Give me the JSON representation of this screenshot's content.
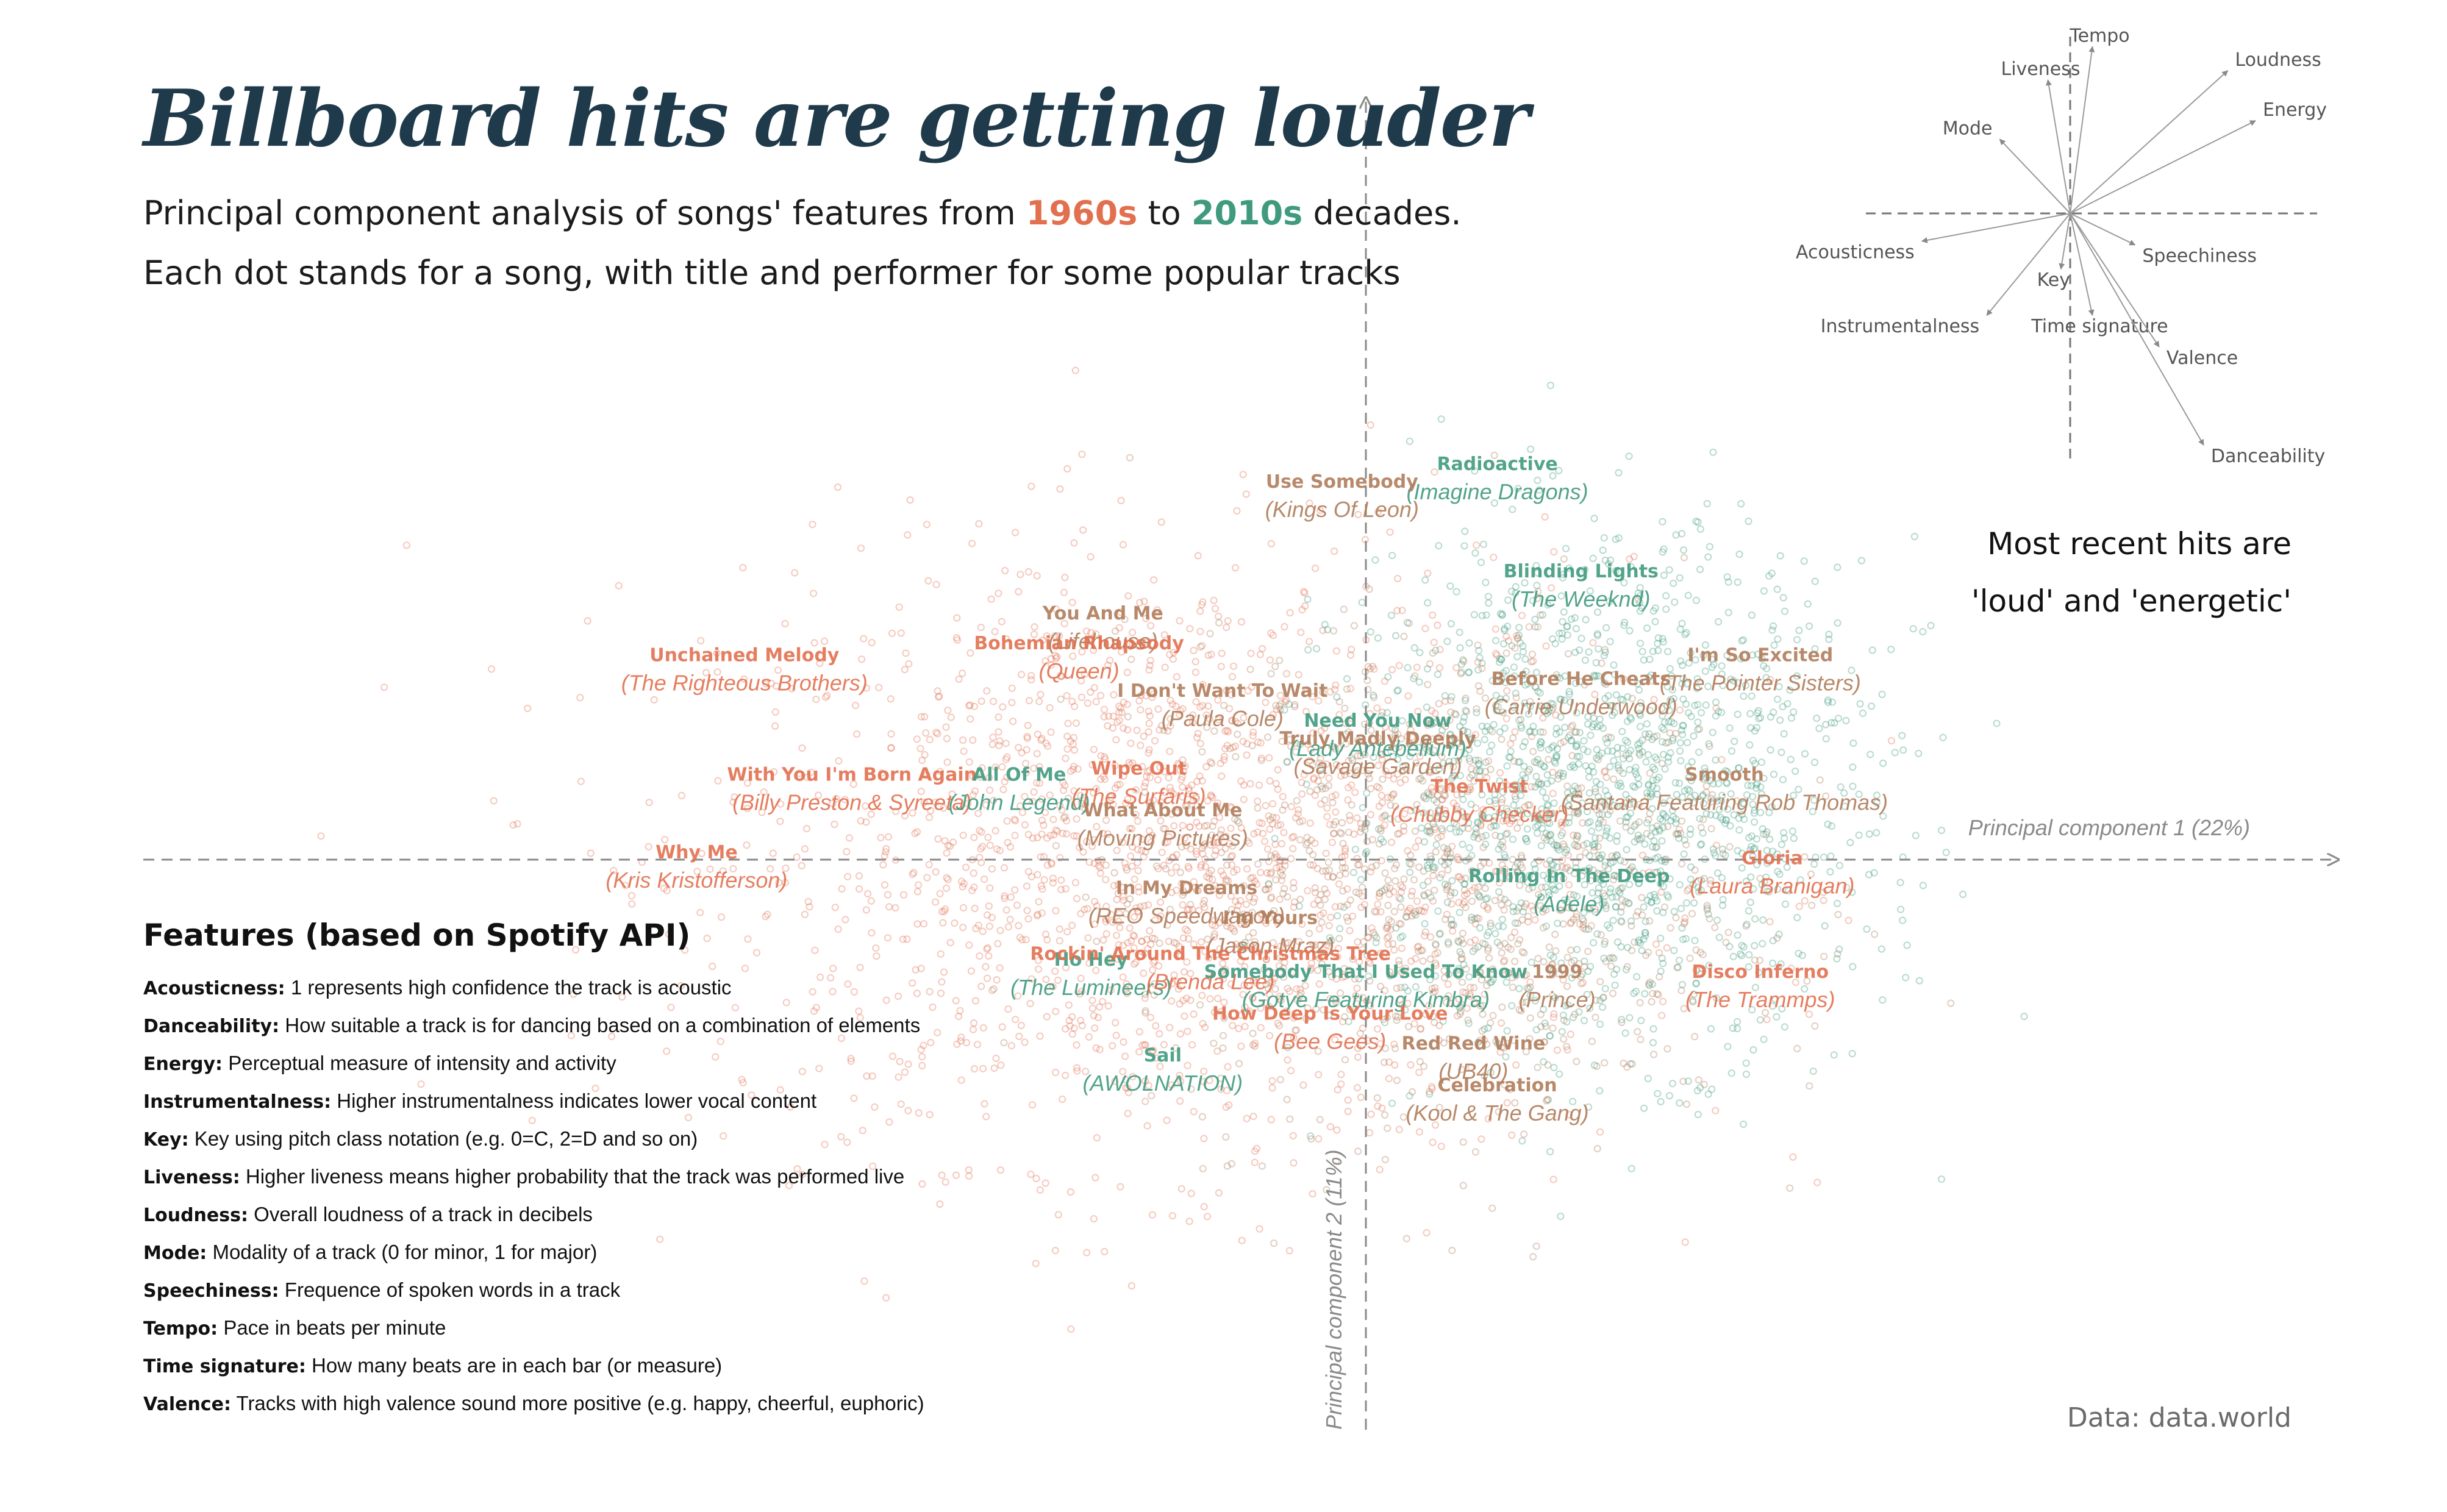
{
  "header": {
    "title": "Billboard hits are getting louder",
    "subtitle_1_pre": "Principal component analysis of songs' features from ",
    "subtitle_1_from": "1960s",
    "subtitle_1_mid": " to ",
    "subtitle_1_to": "2010s",
    "subtitle_1_post": " decades.",
    "subtitle_2": "Each dot stands for a song, with title and performer for some popular tracks"
  },
  "colors": {
    "old": "#e2704f",
    "new": "#3f9a7e",
    "mid": "#b07c5a",
    "axis": "#8a8a8a",
    "title": "#1f3a4a"
  },
  "annotation": {
    "line_1": "Most recent hits are",
    "line_2": "'loud' and 'energetic'"
  },
  "source": "Data: data.world",
  "features": {
    "title": "Features (based on Spotify API)",
    "items": [
      {
        "name": "Acousticness:",
        "desc": " 1 represents high confidence the track is acoustic"
      },
      {
        "name": "Danceability:",
        "desc": " How suitable a track is for dancing based on a combination of elements"
      },
      {
        "name": "Energy:",
        "desc": " Perceptual measure of intensity and activity"
      },
      {
        "name": "Instrumentalness:",
        "desc": " Higher instrumentalness indicates lower vocal content"
      },
      {
        "name": "Key:",
        "desc": " Key using pitch class notation (e.g. 0=C, 2=D and so on)"
      },
      {
        "name": "Liveness:",
        "desc": " Higher liveness means higher probability that the track was performed live"
      },
      {
        "name": "Loudness:",
        "desc": " Overall loudness of a track in decibels"
      },
      {
        "name": "Mode:",
        "desc": " Modality of a track (0 for minor, 1 for major)"
      },
      {
        "name": "Speechiness:",
        "desc": " Frequence of spoken words in a track"
      },
      {
        "name": "Tempo:",
        "desc": " Pace in beats per minute"
      },
      {
        "name": "Time signature:",
        "desc": " How many beats are in each bar (or measure)"
      },
      {
        "name": "Valence:",
        "desc": " Tracks with high valence sound more positive (e.g. happy, cheerful, euphoric)"
      }
    ]
  },
  "chart_data": {
    "type": "scatter",
    "xlabel": "Principal component 1 (22%)",
    "ylabel": "Principal component 2 (11%)",
    "xlim": [
      -6,
      5
    ],
    "ylim": [
      -3.3,
      4
    ],
    "grid": false,
    "series": [
      {
        "name": "1960s",
        "color": "#e2704f"
      },
      {
        "name": "2010s",
        "color": "#3f9a7e"
      }
    ],
    "songs": [
      {
        "title": "Radioactive",
        "artist": "(Imagine Dragons)",
        "x": 1.1,
        "y": 3.2,
        "tone": "new"
      },
      {
        "title": "Use Somebody",
        "artist": "(Kings Of Leon)",
        "x": -0.2,
        "y": 3.05,
        "tone": "mid"
      },
      {
        "title": "Blinding Lights",
        "artist": "(The Weeknd)",
        "x": 1.8,
        "y": 2.3,
        "tone": "new"
      },
      {
        "title": "You And Me",
        "artist": "(Lifehouse)",
        "x": -2.2,
        "y": 1.95,
        "tone": "mid"
      },
      {
        "title": "Bohemian Rhapsody",
        "artist": "(Queen)",
        "x": -2.4,
        "y": 1.7,
        "tone": "old"
      },
      {
        "title": "Unchained Melody",
        "artist": "(The Righteous Brothers)",
        "x": -5.2,
        "y": 1.6,
        "tone": "old"
      },
      {
        "title": "I'm So Excited",
        "artist": "(The Pointer Sisters)",
        "x": 3.3,
        "y": 1.6,
        "tone": "mid"
      },
      {
        "title": "Before He Cheats",
        "artist": "(Carrie Underwood)",
        "x": 1.8,
        "y": 1.4,
        "tone": "mid"
      },
      {
        "title": "I Don't Want To Wait",
        "artist": "(Paula Cole)",
        "x": -1.2,
        "y": 1.3,
        "tone": "mid"
      },
      {
        "title": "Need You Now",
        "artist": "(Lady Antebellum)",
        "x": 0.1,
        "y": 1.05,
        "tone": "new"
      },
      {
        "title": "Truly Madly Deeply",
        "artist": "(Savage Garden)",
        "x": 0.1,
        "y": 0.9,
        "tone": "mid"
      },
      {
        "title": "With You I'm Born Again",
        "artist": "(Billy Preston & Syreeta)",
        "x": -4.3,
        "y": 0.6,
        "tone": "old"
      },
      {
        "title": "All Of Me",
        "artist": "(John Legend)",
        "x": -2.9,
        "y": 0.6,
        "tone": "new"
      },
      {
        "title": "Wipe Out",
        "artist": "(The Surfaris)",
        "x": -1.9,
        "y": 0.65,
        "tone": "old"
      },
      {
        "title": "The Twist",
        "artist": "(Chubby Checker)",
        "x": 0.95,
        "y": 0.5,
        "tone": "old"
      },
      {
        "title": "Smooth",
        "artist": "(Santana Featuring Rob Thomas)",
        "x": 3.0,
        "y": 0.6,
        "tone": "mid"
      },
      {
        "title": "What About Me",
        "artist": "(Moving Pictures)",
        "x": -1.7,
        "y": 0.3,
        "tone": "mid"
      },
      {
        "title": "Why Me",
        "artist": "(Kris Kristofferson)",
        "x": -5.6,
        "y": -0.05,
        "tone": "old"
      },
      {
        "title": "Rolling In The Deep",
        "artist": "(Adele)",
        "x": 1.7,
        "y": -0.25,
        "tone": "new"
      },
      {
        "title": "Gloria",
        "artist": "(Laura Branigan)",
        "x": 3.4,
        "y": -0.1,
        "tone": "old"
      },
      {
        "title": "In My Dreams",
        "artist": "(REO Speedwagon)",
        "x": -1.5,
        "y": -0.35,
        "tone": "mid"
      },
      {
        "title": "I'm Yours",
        "artist": "(Jason Mraz)",
        "x": -0.8,
        "y": -0.6,
        "tone": "mid"
      },
      {
        "title": "Ho Hey",
        "artist": "(The Lumineers)",
        "x": -2.3,
        "y": -0.95,
        "tone": "new"
      },
      {
        "title": "Rockin' Around The Christmas Tree",
        "artist": "(Brenda Lee)",
        "x": -1.3,
        "y": -0.9,
        "tone": "old"
      },
      {
        "title": "Somebody That I Used To Know",
        "artist": "(Gotye Featuring Kimbra)",
        "x": 0.0,
        "y": -1.05,
        "tone": "new"
      },
      {
        "title": "1999",
        "artist": "(Prince)",
        "x": 1.6,
        "y": -1.05,
        "tone": "mid"
      },
      {
        "title": "Disco Inferno",
        "artist": "(The Trammps)",
        "x": 3.3,
        "y": -1.05,
        "tone": "old"
      },
      {
        "title": "How Deep Is Your Love",
        "artist": "(Bee Gees)",
        "x": -0.3,
        "y": -1.4,
        "tone": "old"
      },
      {
        "title": "Red Red Wine",
        "artist": "(UB40)",
        "x": 0.9,
        "y": -1.65,
        "tone": "mid"
      },
      {
        "title": "Sail",
        "artist": "(AWOLNATION)",
        "x": -1.7,
        "y": -1.75,
        "tone": "new"
      },
      {
        "title": "Celebration",
        "artist": "(Kool & The Gang)",
        "x": 1.1,
        "y": -2.0,
        "tone": "mid"
      }
    ],
    "loadings": [
      {
        "name": "Tempo",
        "x": 0.12,
        "y": 0.9
      },
      {
        "name": "Liveness",
        "x": -0.12,
        "y": 0.72
      },
      {
        "name": "Loudness",
        "x": 0.85,
        "y": 0.77
      },
      {
        "name": "Energy",
        "x": 1.0,
        "y": 0.5
      },
      {
        "name": "Mode",
        "x": -0.38,
        "y": 0.4
      },
      {
        "name": "Acousticness",
        "x": -0.8,
        "y": -0.15
      },
      {
        "name": "Speechiness",
        "x": 0.35,
        "y": -0.17
      },
      {
        "name": "Key",
        "x": -0.05,
        "y": -0.3
      },
      {
        "name": "Instrumentalness",
        "x": -0.45,
        "y": -0.55
      },
      {
        "name": "Time signature",
        "x": 0.12,
        "y": -0.55
      },
      {
        "name": "Valence",
        "x": 0.48,
        "y": -0.72
      },
      {
        "name": "Danceability",
        "x": 0.72,
        "y": -1.25
      }
    ]
  }
}
